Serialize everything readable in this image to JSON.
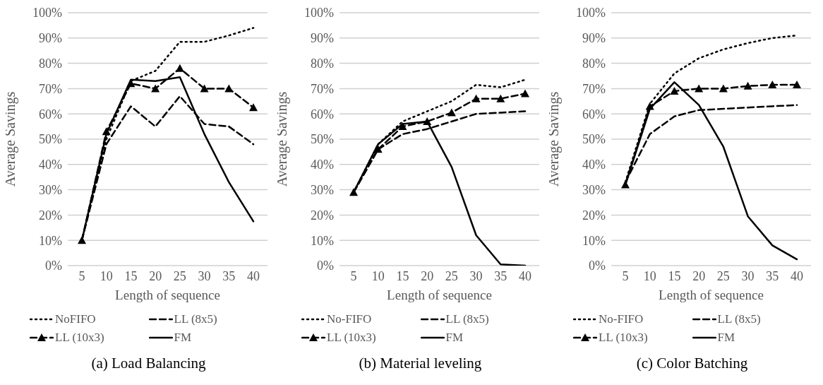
{
  "chart_data": [
    {
      "type": "line",
      "title": "(a) Load Balancing",
      "xlabel": "Length of sequence",
      "ylabel": "Average Savings",
      "categories": [
        "5",
        "10",
        "15",
        "20",
        "25",
        "30",
        "35",
        "40"
      ],
      "ylim": [
        0,
        100
      ],
      "yticks": [
        {
          "value": 0,
          "label": "0%"
        },
        {
          "value": 10,
          "label": "10%"
        },
        {
          "value": 20,
          "label": "20%"
        },
        {
          "value": 30,
          "label": "30%"
        },
        {
          "value": 40,
          "label": "40%"
        },
        {
          "value": 50,
          "label": "50%"
        },
        {
          "value": 60,
          "label": "60%"
        },
        {
          "value": 70,
          "label": "70%"
        },
        {
          "value": 80,
          "label": "80%"
        },
        {
          "value": 90,
          "label": "90%"
        },
        {
          "value": 100,
          "label": "100%"
        }
      ],
      "grid": "y",
      "legend": "bottom",
      "series": [
        {
          "name": "NoFIFO",
          "color": "#000000",
          "line_style": "dotted",
          "marker": "none",
          "values": [
            10,
            50,
            73,
            77,
            88.5,
            88.5,
            91,
            94
          ]
        },
        {
          "name": "LL (8x5)",
          "color": "#000000",
          "line_style": "dashed",
          "marker": "none",
          "values": [
            10,
            48,
            63,
            55,
            67,
            56,
            55,
            48
          ]
        },
        {
          "name": "LL (10x3)",
          "color": "#000000",
          "line_style": "dashed",
          "marker": "triangle",
          "values": [
            10,
            53,
            72,
            70,
            78,
            70,
            70,
            62.5
          ]
        },
        {
          "name": "FM",
          "color": "#000000",
          "line_style": "solid",
          "marker": "none",
          "values": [
            10,
            52,
            73.5,
            73,
            74.5,
            52,
            33,
            17.5
          ]
        }
      ]
    },
    {
      "type": "line",
      "title": "(b) Material leveling",
      "xlabel": "Length of sequence",
      "ylabel": "Average Savings",
      "categories": [
        "5",
        "10",
        "15",
        "20",
        "25",
        "30",
        "35",
        "40"
      ],
      "ylim": [
        0,
        100
      ],
      "yticks": [
        {
          "value": 0,
          "label": "0%"
        },
        {
          "value": 10,
          "label": "10%"
        },
        {
          "value": 20,
          "label": "20%"
        },
        {
          "value": 30,
          "label": "30%"
        },
        {
          "value": 40,
          "label": "40%"
        },
        {
          "value": 50,
          "label": "50%"
        },
        {
          "value": 60,
          "label": "60%"
        },
        {
          "value": 70,
          "label": "70%"
        },
        {
          "value": 80,
          "label": "80%"
        },
        {
          "value": 90,
          "label": "90%"
        },
        {
          "value": 100,
          "label": "100%"
        }
      ],
      "grid": "y",
      "legend": "bottom",
      "series": [
        {
          "name": "No-FIFO",
          "color": "#000000",
          "line_style": "dotted",
          "marker": "none",
          "values": [
            29,
            48,
            57,
            61,
            65,
            71.5,
            70.5,
            73.5
          ]
        },
        {
          "name": "LL (8x5)",
          "color": "#000000",
          "line_style": "dashed",
          "marker": "none",
          "values": [
            29,
            46,
            52,
            54,
            57,
            60,
            60.5,
            61
          ]
        },
        {
          "name": "LL (10x3)",
          "color": "#000000",
          "line_style": "dashed",
          "marker": "triangle",
          "values": [
            29,
            46,
            55,
            57,
            60.5,
            66,
            66,
            68
          ]
        },
        {
          "name": "FM",
          "color": "#000000",
          "line_style": "solid",
          "marker": "none",
          "values": [
            29,
            48,
            56,
            57,
            39,
            12,
            0.5,
            0
          ]
        }
      ]
    },
    {
      "type": "line",
      "title": "(c) Color Batching",
      "xlabel": "Length of sequence",
      "ylabel": "Average Savings",
      "categories": [
        "5",
        "10",
        "15",
        "20",
        "25",
        "30",
        "35",
        "40"
      ],
      "ylim": [
        0,
        100
      ],
      "yticks": [
        {
          "value": 0,
          "label": "0%"
        },
        {
          "value": 10,
          "label": "10%"
        },
        {
          "value": 20,
          "label": "20%"
        },
        {
          "value": 30,
          "label": "30%"
        },
        {
          "value": 40,
          "label": "40%"
        },
        {
          "value": 50,
          "label": "50%"
        },
        {
          "value": 60,
          "label": "60%"
        },
        {
          "value": 70,
          "label": "70%"
        },
        {
          "value": 80,
          "label": "80%"
        },
        {
          "value": 90,
          "label": "90%"
        },
        {
          "value": 100,
          "label": "100%"
        }
      ],
      "grid": "y",
      "legend": "bottom",
      "series": [
        {
          "name": "No-FIFO",
          "color": "#000000",
          "line_style": "dotted",
          "marker": "none",
          "values": [
            33,
            64,
            76,
            82,
            85.5,
            88,
            90,
            91
          ]
        },
        {
          "name": "LL (8x5)",
          "color": "#000000",
          "line_style": "dashed",
          "marker": "none",
          "values": [
            33,
            52,
            59,
            61.5,
            62,
            62.5,
            63,
            63.5
          ]
        },
        {
          "name": "LL (10x3)",
          "color": "#000000",
          "line_style": "dashed",
          "marker": "triangle",
          "values": [
            32,
            63,
            69,
            70,
            70,
            71,
            71.5,
            71.5
          ]
        },
        {
          "name": "FM",
          "color": "#000000",
          "line_style": "solid",
          "marker": "none",
          "values": [
            32,
            62,
            72.5,
            63.5,
            47,
            19.5,
            8,
            2.5
          ]
        }
      ]
    }
  ]
}
